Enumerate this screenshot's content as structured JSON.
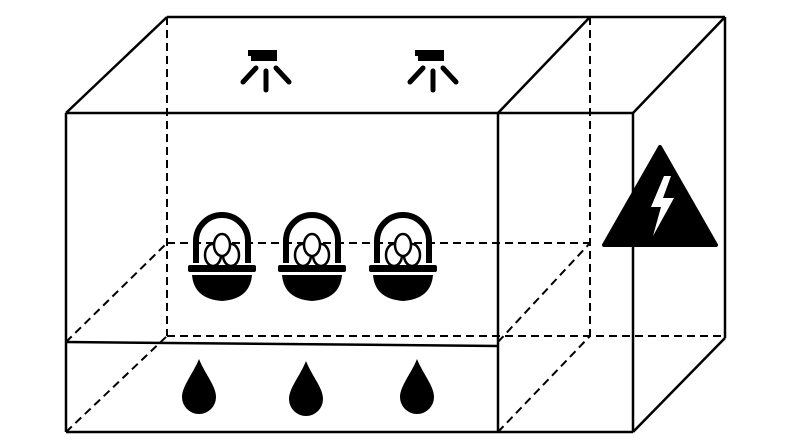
{
  "diagram": {
    "colors": {
      "stroke": "#000000",
      "fill": "#000000",
      "background": "#ffffff"
    },
    "components": [
      {
        "name": "incubator-cabinet",
        "kind": "box"
      },
      {
        "name": "control-compartment",
        "kind": "box"
      },
      {
        "name": "water-tray",
        "kind": "box"
      },
      {
        "name": "heat-lamp",
        "icon": "heat-lamp-icon",
        "count": 2
      },
      {
        "name": "egg-basket",
        "icon": "egg-basket-icon",
        "count": 3
      },
      {
        "name": "water-drop",
        "icon": "water-drop-icon",
        "count": 3
      },
      {
        "name": "electric-hazard",
        "icon": "electric-hazard-icon",
        "count": 1
      }
    ]
  }
}
